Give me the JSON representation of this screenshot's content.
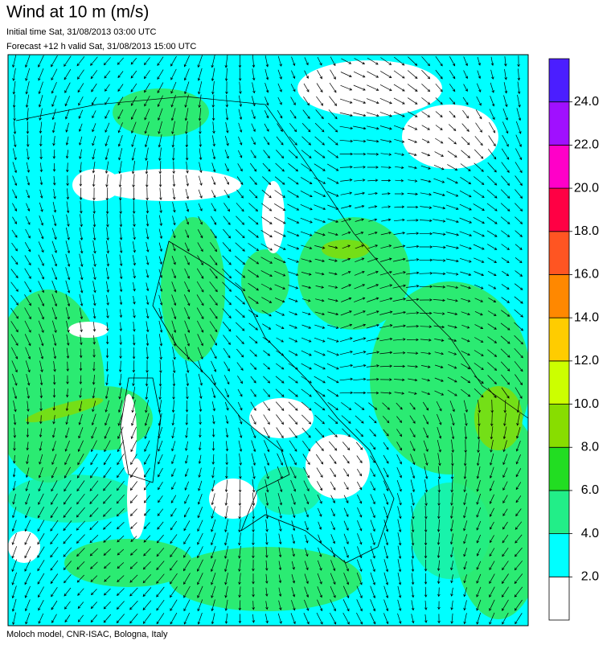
{
  "header": {
    "title": "Wind at 10 m (m/s)",
    "initial_time": "Initial time  Sat, 31/08/2013 03:00 UTC",
    "forecast": "Forecast +12 h valid  Sat, 31/08/2013 15:00 UTC"
  },
  "footer": "Moloch model, CNR-ISAC, Bologna, Italy",
  "colorbar": {
    "lim": [
      0,
      26
    ],
    "colors": [
      "#ffffff",
      "#00ffff",
      "#22ee88",
      "#22dd22",
      "#88dd00",
      "#ccff00",
      "#ffcc00",
      "#ff8800",
      "#ff5522",
      "#ff0044",
      "#ff00c8",
      "#a010ff",
      "#4b1eff"
    ],
    "ticks": [
      {
        "value": 2,
        "label": "2.0"
      },
      {
        "value": 4,
        "label": "4.0"
      },
      {
        "value": 6,
        "label": "6.0"
      },
      {
        "value": 8,
        "label": "8.0"
      },
      {
        "value": 10,
        "label": "10.0"
      },
      {
        "value": 12,
        "label": "12.0"
      },
      {
        "value": 14,
        "label": "14.0"
      },
      {
        "value": 16,
        "label": "16.0"
      },
      {
        "value": 18,
        "label": "18.0"
      },
      {
        "value": 20,
        "label": "20.0"
      },
      {
        "value": 22,
        "label": "22.0"
      },
      {
        "value": 24,
        "label": "24.0"
      }
    ]
  }
}
